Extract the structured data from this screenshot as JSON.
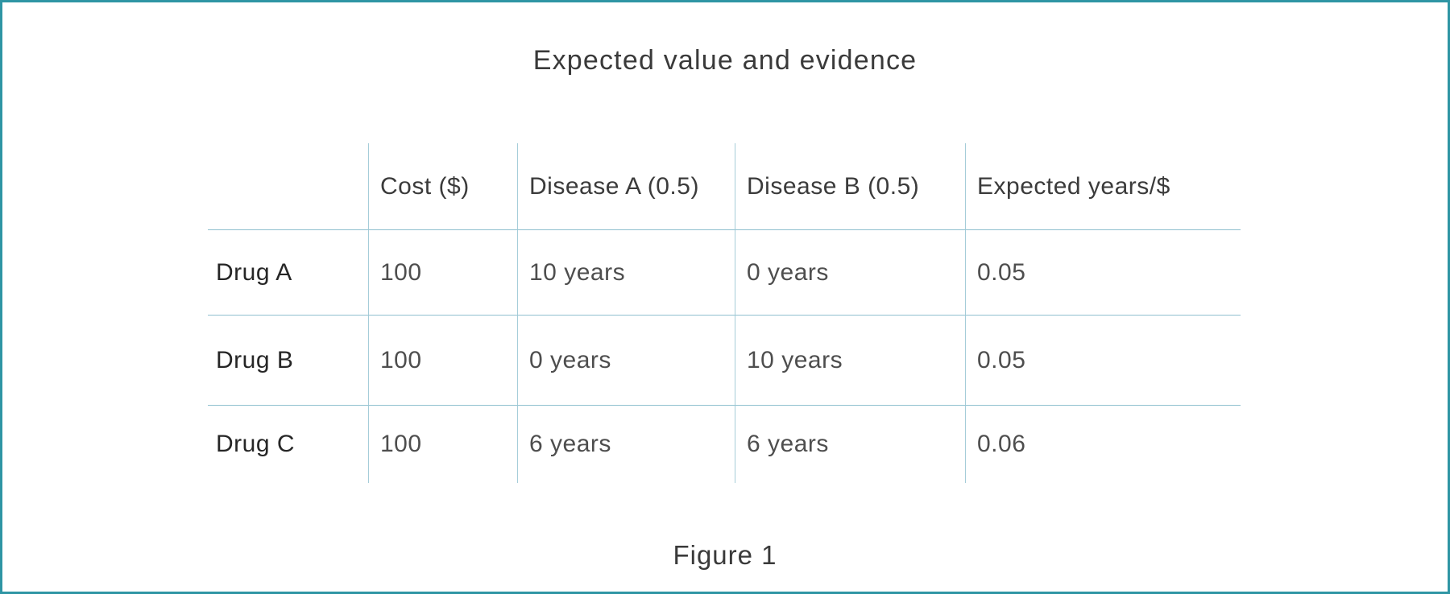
{
  "page": {
    "title": "Expected value and evidence",
    "caption": "Figure 1"
  },
  "colors": {
    "frame_border": "#2f95a4",
    "grid_vertical_line": "#a5cdd9",
    "grid_horizontal_line": "#8fc0cf",
    "title_text": "#3a3a3a",
    "header_text": "#3b3b3b",
    "row_label_text": "#262626",
    "value_text": "#4e4e4e",
    "background": "#ffffff"
  },
  "table": {
    "columns": [
      "",
      "Cost ($)",
      "Disease A (0.5)",
      "Disease B (0.5)",
      "Expected years/$"
    ],
    "rows": [
      {
        "cells": [
          "Drug A",
          "100",
          "10 years",
          "0 years",
          "0.05"
        ]
      },
      {
        "cells": [
          "Drug B",
          "100",
          "0 years",
          "10 years",
          "0.05"
        ]
      },
      {
        "cells": [
          "Drug C",
          "100",
          "6 years",
          "6 years",
          "0.06"
        ]
      }
    ]
  },
  "chart_data": {
    "type": "table",
    "title": "Expected value and evidence",
    "caption": "Figure 1",
    "columns": [
      "",
      "Cost ($)",
      "Disease A (0.5)",
      "Disease B (0.5)",
      "Expected years/$"
    ],
    "rows": [
      [
        "Drug A",
        100,
        "10 years",
        "0 years",
        0.05
      ],
      [
        "Drug B",
        100,
        "0 years",
        "10 years",
        0.05
      ],
      [
        "Drug C",
        100,
        "6 years",
        "6 years",
        0.06
      ]
    ]
  }
}
